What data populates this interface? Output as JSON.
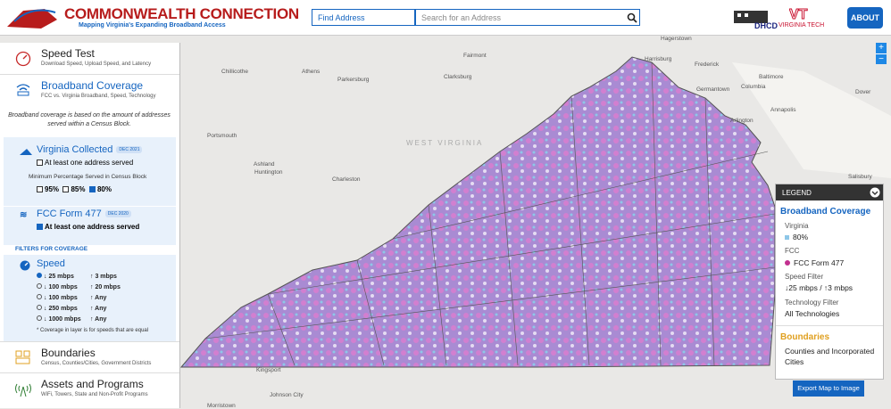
{
  "header": {
    "title": "COMMONWEALTH CONNECTION",
    "subtitle": "Mapping Virginia's Expanding Broadband Access",
    "search_dropdown": "Find Address",
    "search_placeholder": "Search for an Address",
    "partner_1": "DHCD",
    "partner_2": "VIRGINIA TECH",
    "about": "ABOUT"
  },
  "sidebar": {
    "speed_test": {
      "title": "Speed Test",
      "subtitle": "Download Speed, Upload Speed, and Latency"
    },
    "broadband": {
      "title": "Broadband Coverage",
      "subtitle": "FCC vs. Virginia Broadband, Speed, Technology",
      "note": "Broadband coverage is based on the amount of addresses served within a Census Block."
    },
    "virginia_collected": {
      "title": "Virginia Collected",
      "badge": "DEC 2021",
      "option": "At least one address served",
      "min_label": "Minimum Percentage Served in Census Block",
      "percents": [
        "95%",
        "85%",
        "80%"
      ]
    },
    "fcc": {
      "title": "FCC Form 477",
      "badge": "DEC 2020",
      "option": "At least one address served"
    },
    "filters_heading": "FILTERS FOR COVERAGE",
    "speed": {
      "title": "Speed",
      "options": [
        {
          "down": "↓ 25 mbps",
          "up": "↑ 3 mbps"
        },
        {
          "down": "↓ 100 mbps",
          "up": "↑ 20 mbps"
        },
        {
          "down": "↓ 100 mbps",
          "up": "↑ Any"
        },
        {
          "down": "↓ 250 mbps",
          "up": "↑ Any"
        },
        {
          "down": "↓ 1000 mbps",
          "up": "↑ Any"
        }
      ],
      "footnote": "* Coverage in layer is for speeds that are equal"
    },
    "boundaries": {
      "title": "Boundaries",
      "subtitle": "Census, Counties/Cities, Government Districts"
    },
    "assets": {
      "title": "Assets and Programs",
      "subtitle": "WiFi, Towers, State and Non-Profit Programs"
    }
  },
  "map": {
    "zoom_in": "+",
    "zoom_out": "−",
    "state_label": "WEST VIRGINIA",
    "cities": [
      "Chillicothe",
      "Athens",
      "Parkersburg",
      "Clarksburg",
      "Fairmont",
      "Hagerstown",
      "Harrisburg",
      "Frederick",
      "Baltimore",
      "Germantown",
      "Columbia",
      "Dover",
      "Annapolis",
      "Arlington",
      "Salisbury",
      "Portsmouth",
      "Ashland",
      "Huntington",
      "Charleston",
      "Kingsport",
      "Johnson City",
      "Morristown"
    ]
  },
  "legend": {
    "header": "LEGEND",
    "section_1": "Broadband Coverage",
    "virginia_label": "Virginia",
    "virginia_value": "80%",
    "fcc_label": "FCC",
    "fcc_value": "FCC Form 477",
    "speed_label": "Speed Filter",
    "speed_value": "↓25 mbps / ↑3 mbps",
    "tech_label": "Technology Filter",
    "tech_value": "All Technologies",
    "section_2": "Boundaries",
    "boundaries_value": "Counties and Incorporated Cities"
  },
  "export": "Export Map to Image"
}
